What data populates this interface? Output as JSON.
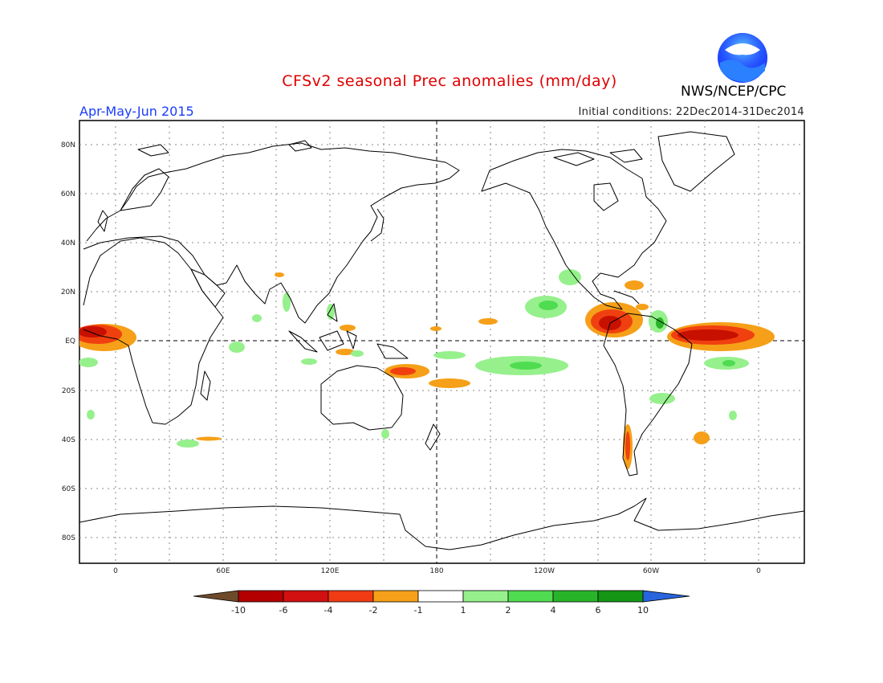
{
  "header": {
    "title": "CFSv2 seasonal Prec anomalies (mm/day)",
    "season": "Apr-May-Jun 2015",
    "initial_conditions": "Initial conditions: 22Dec2014-31Dec2014",
    "agency": "NWS/NCEP/CPC",
    "logo_text": "NOAA"
  },
  "axes": {
    "lat_labels": [
      "80N",
      "60N",
      "40N",
      "20N",
      "EQ",
      "20S",
      "40S",
      "60S",
      "80S"
    ],
    "lon_labels": [
      "0",
      "60E",
      "120E",
      "180",
      "120W",
      "60W",
      "0"
    ]
  },
  "colorbar": {
    "labels": [
      "-10",
      "-6",
      "-4",
      "-2",
      "-1",
      "1",
      "2",
      "4",
      "6",
      "10"
    ],
    "colors": [
      "#6e4a2a",
      "#b40000",
      "#d21010",
      "#f03c14",
      "#f5a018",
      "#ffffff",
      "#96f08c",
      "#50dc50",
      "#28b428",
      "#149614",
      "#2864dc"
    ]
  },
  "colors": {
    "dry_strong": "#c81000",
    "dry_mid": "#f04010",
    "dry_weak": "#f5a018",
    "wet_weak": "#96f08c",
    "wet_mid": "#50dc50",
    "coast": "#000000"
  }
}
